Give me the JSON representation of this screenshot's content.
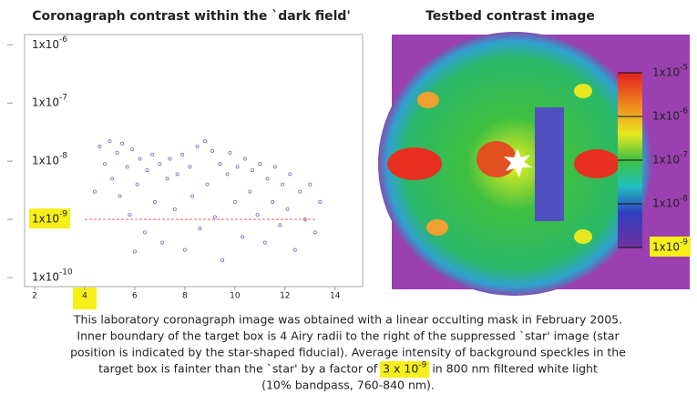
{
  "chart_data": [
    {
      "type": "scatter",
      "title": "Coronagraph contrast within the `dark field'",
      "x": [
        4.6,
        4.8,
        5.0,
        5.1,
        5.3,
        5.4,
        5.5,
        5.7,
        5.8,
        5.9,
        6.1,
        6.2,
        6.4,
        6.5,
        6.7,
        6.8,
        7.0,
        7.1,
        7.3,
        7.4,
        7.6,
        7.7,
        7.9,
        8.0,
        8.2,
        8.3,
        8.5,
        8.6,
        8.8,
        8.9,
        9.1,
        9.2,
        9.4,
        9.5,
        9.7,
        9.8,
        10.0,
        10.1,
        10.3,
        10.4,
        10.6,
        10.7,
        10.9,
        11.0,
        11.2,
        11.3,
        11.5,
        11.6,
        11.8,
        11.9,
        12.1,
        12.2,
        12.4,
        12.6,
        12.8,
        13.0,
        13.2,
        13.4,
        4.4,
        6.0
      ],
      "series": [
        {
          "color": "#7070c8",
          "values": [
            1.8e-08,
            9e-09,
            2.2e-08,
            5e-09,
            1.4e-08,
            2.5e-09,
            2e-08,
            8e-09,
            1.2e-09,
            1.6e-08,
            4e-09,
            1.1e-08,
            6e-10,
            7e-09,
            1.3e-08,
            2e-09,
            9e-09,
            4e-10,
            5e-09,
            1.1e-08,
            1.5e-09,
            6e-09,
            1.3e-08,
            3e-10,
            8e-09,
            2.5e-09,
            1.8e-08,
            7e-10,
            2.2e-08,
            4e-09,
            1.5e-08,
            1.1e-09,
            9e-09,
            2e-10,
            6e-09,
            1.4e-08,
            2e-09,
            8e-09,
            5e-10,
            1.1e-08,
            3e-09,
            7e-09,
            1.2e-09,
            9e-09,
            4e-10,
            5e-09,
            2e-09,
            8e-09,
            8e-10,
            4e-09,
            1.5e-09,
            6e-09,
            3e-10,
            3e-09,
            1e-09,
            4e-09,
            6e-10,
            2e-09,
            3e-09,
            2.8e-10
          ]
        }
      ],
      "log_y": true,
      "ylim": [
        7e-11,
        1.5e-06
      ],
      "xlim": [
        1.6,
        15.1
      ],
      "xticks": [
        2,
        4,
        6,
        8,
        10,
        12,
        14
      ],
      "yticks": [
        {
          "value": 1e-06,
          "label": "1x10",
          "exponent": "-6"
        },
        {
          "value": 1e-07,
          "label": "1x10",
          "exponent": "-7"
        },
        {
          "value": 1e-08,
          "label": "1x10",
          "exponent": "-8"
        },
        {
          "value": 1e-09,
          "label": "1x10",
          "exponent": "-9"
        },
        {
          "value": 1e-10,
          "label": "1x10",
          "exponent": "-10"
        }
      ],
      "reference_line": {
        "y": 1e-09,
        "x": [
          4,
          13.2
        ],
        "color": "#f08080"
      },
      "highlight": {
        "x": 4,
        "y": 1e-09,
        "color": "#f7ef1a"
      }
    },
    {
      "type": "image",
      "title": "Testbed contrast image",
      "log_y": true,
      "ylim": [
        1e-09,
        1e-05
      ],
      "yticks": [
        {
          "value": 1e-05,
          "label": "1x10",
          "exponent": "-5"
        },
        {
          "value": 1e-06,
          "label": "1x10",
          "exponent": "-6"
        },
        {
          "value": 1e-07,
          "label": "1x10",
          "exponent": "-7"
        },
        {
          "value": 1e-08,
          "label": "1x10",
          "exponent": "-8"
        },
        {
          "value": 1e-09,
          "label": "1x10",
          "exponent": "-9"
        }
      ],
      "highlight": {
        "y": 1e-09,
        "color": "#f7ef1a"
      }
    }
  ],
  "caption": {
    "lines": [
      "This laboratory coronagraph image was obtained with a linear occulting mask in February 2005.",
      "Inner boundary of the target box is 4 Airy radii to the right of the suppressed `star' image (star",
      "position is indicated by the star-shaped fiducial).   Average intensity of background speckles in the"
    ],
    "line4": {
      "before": "target box is fainter than the `star' by a factor of",
      "highlight": "3 x 10",
      "exponent": "-9",
      "after": "in 800 nm filtered white light"
    },
    "last": "(10% bandpass, 760-840 nm)."
  }
}
